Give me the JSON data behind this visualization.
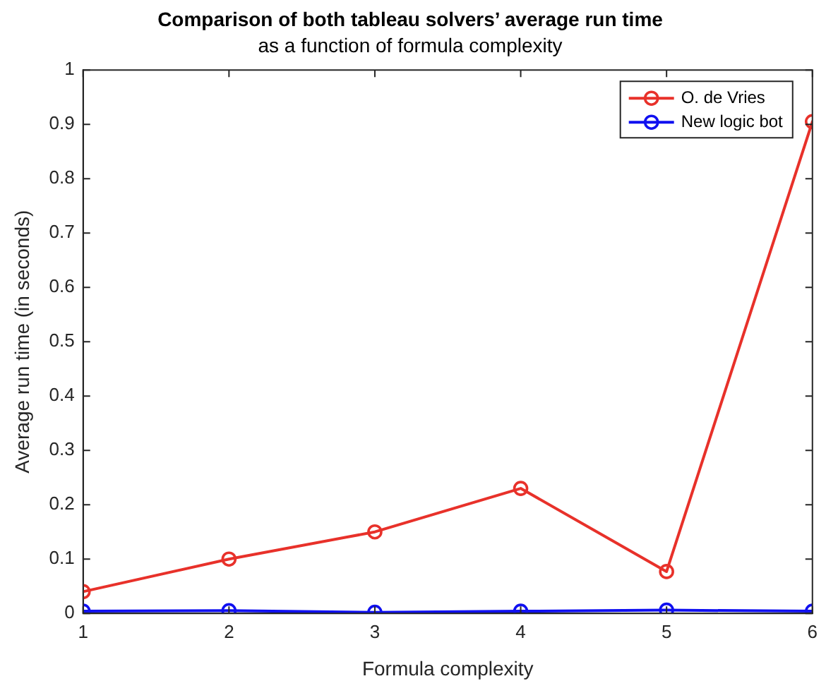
{
  "chart_data": {
    "type": "line",
    "title": "Comparison of both tableau solvers’ average run time",
    "subtitle": "as a function of formula complexity",
    "xlabel": "Formula complexity",
    "ylabel": "Average run time (in seconds)",
    "x": [
      1,
      2,
      3,
      4,
      5,
      6
    ],
    "series": [
      {
        "name": "O. de Vries",
        "color": "#e8312a",
        "values": [
          0.04,
          0.1,
          0.15,
          0.23,
          0.077,
          0.905
        ]
      },
      {
        "name": "New logic bot",
        "color": "#1010f0",
        "values": [
          0.004,
          0.005,
          0.002,
          0.004,
          0.006,
          0.004
        ]
      }
    ],
    "xlim": [
      1,
      6
    ],
    "xticks": [
      1,
      2,
      3,
      4,
      5,
      6
    ],
    "ylim": [
      0,
      1
    ],
    "yticks": [
      0,
      0.1,
      0.2,
      0.3,
      0.4,
      0.5,
      0.6,
      0.7,
      0.8,
      0.9,
      1
    ],
    "grid": false,
    "legend": "top right",
    "marker": "circle",
    "line_style": "solid"
  }
}
